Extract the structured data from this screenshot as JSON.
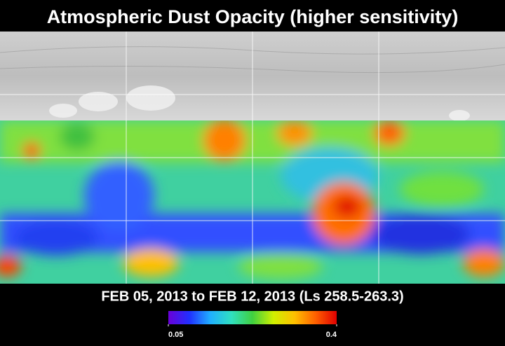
{
  "header": {
    "title": "Atmospheric Dust Opacity (higher sensitivity)"
  },
  "map": {
    "date_range": "FEB 05, 2013 to FEB 12, 2013 (Ls 258.5-263.3)"
  },
  "colorbar": {
    "range": [
      0.05,
      0.4
    ],
    "ticks": [
      0.05,
      0.4
    ],
    "colors": [
      "#6a00d8",
      "#2030ff",
      "#20b0ff",
      "#30e0c0",
      "#40d040",
      "#d0f000",
      "#ffc000",
      "#ff6000",
      "#e00000"
    ]
  }
}
